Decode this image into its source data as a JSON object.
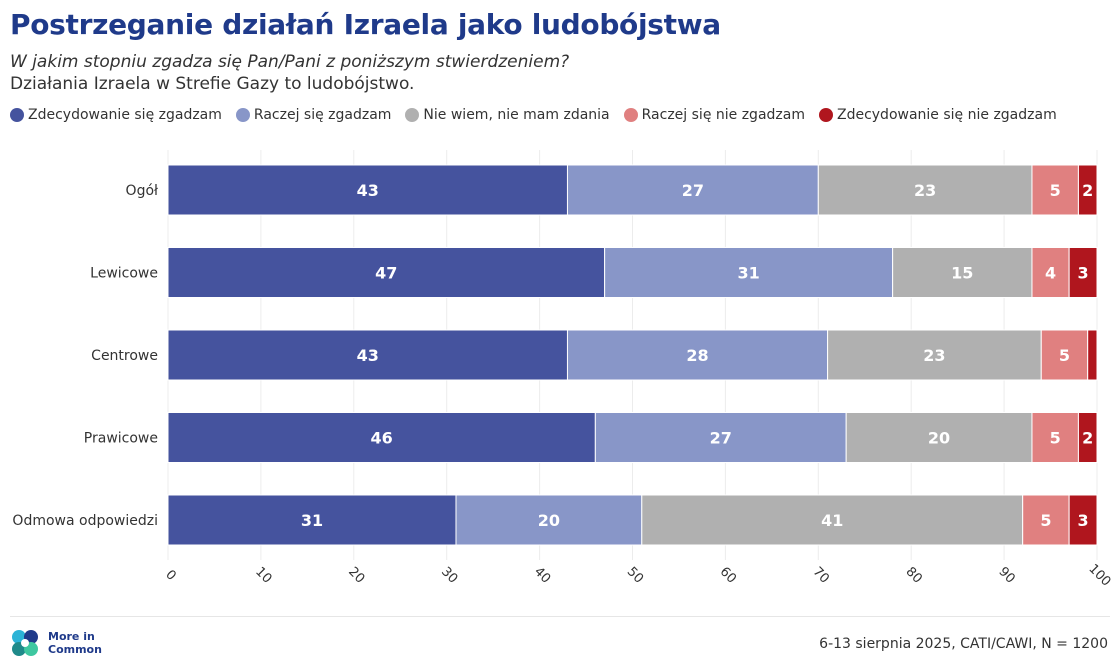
{
  "header": {
    "title": "Postrzeganie działań Izraela jako ludobójstwa",
    "question": "W jakim stopniu zgadza się Pan/Pani z poniższym stwierdzeniem?",
    "statement": "Działania Izraela w Strefie Gazy to ludobójstwo."
  },
  "footer": {
    "logo_text": "More in Common",
    "source": "6-13 sierpnia 2025, CATI/CAWI, N = 1200"
  },
  "chart_data": {
    "type": "bar",
    "orientation": "horizontal",
    "stacked": true,
    "categories": [
      "Ogół",
      "Lewicowe",
      "Centrowe",
      "Prawicowe",
      "Odmowa odpowiedzi"
    ],
    "series": [
      {
        "name": "Zdecydowanie się zgadzam",
        "color": "#45539e",
        "values": [
          43,
          47,
          43,
          46,
          31
        ],
        "labels": [
          "43",
          "47",
          "43",
          "46",
          "31"
        ]
      },
      {
        "name": "Raczej się zgadzam",
        "color": "#8896c8",
        "values": [
          27,
          31,
          28,
          27,
          20
        ],
        "labels": [
          "27",
          "31",
          "28",
          "27",
          "20"
        ]
      },
      {
        "name": "Nie wiem, nie mam zdania",
        "color": "#b0b0b0",
        "values": [
          23,
          15,
          23,
          20,
          41
        ],
        "labels": [
          "23",
          "15",
          "23",
          "20",
          "41"
        ]
      },
      {
        "name": "Raczej się nie zgadzam",
        "color": "#e08080",
        "values": [
          5,
          4,
          5,
          5,
          5
        ],
        "labels": [
          "5",
          "4",
          "5",
          "5",
          "5"
        ]
      },
      {
        "name": "Zdecydowanie się nie zgadzam",
        "color": "#b0161e",
        "values": [
          2,
          3,
          1,
          2,
          3
        ],
        "labels": [
          "2",
          "3",
          "",
          "2",
          "3"
        ]
      }
    ],
    "xlim": [
      0,
      100
    ],
    "xticks": [
      0,
      10,
      20,
      30,
      40,
      50,
      60,
      70,
      80,
      90,
      100
    ],
    "grid": true,
    "legend_position": "top"
  }
}
